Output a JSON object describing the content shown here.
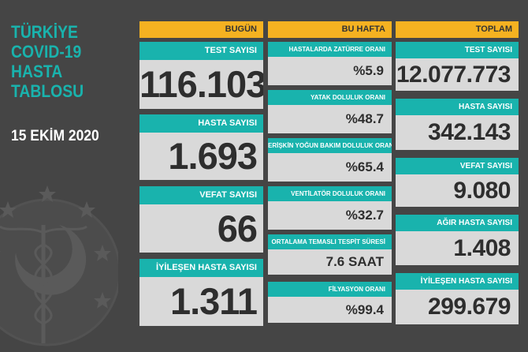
{
  "title_lines": [
    "TÜRKİYE",
    "COVID-19",
    "HASTA",
    "TABLOSU"
  ],
  "date": "15 EKİM 2020",
  "colors": {
    "background": "#454545",
    "teal": "#19b3ad",
    "yellow": "#f5b221",
    "panel": "#d9d9d9"
  },
  "emblem_icon": "ministry-of-health-emblem-icon",
  "today": {
    "header": "BUGÜN",
    "items": [
      {
        "label": "TEST SAYISI",
        "value": "116.103"
      },
      {
        "label": "HASTA SAYISI",
        "value": "1.693"
      },
      {
        "label": "VEFAT SAYISI",
        "value": "66"
      },
      {
        "label": "İYİLEŞEN HASTA SAYISI",
        "value": "1.311"
      }
    ]
  },
  "this_week": {
    "header": "BU HAFTA",
    "items": [
      {
        "label": "HASTALARDA ZATÜRRE ORANI",
        "value": "%5.9"
      },
      {
        "label": "YATAK DOLULUK ORANI",
        "value": "%48.7"
      },
      {
        "label": "ERİŞKİN YOĞUN BAKIM DOLULUK ORANI",
        "value": "%65.4"
      },
      {
        "label": "VENTİLATÖR DOLULUK ORANI",
        "value": "%32.7"
      },
      {
        "label": "ORTALAMA TEMASLI TESPİT SÜRESİ",
        "value": "7.6 SAAT"
      },
      {
        "label": "FİLYASYON ORANI",
        "value": "%99.4"
      }
    ]
  },
  "total": {
    "header": "TOPLAM",
    "items": [
      {
        "label": "TEST SAYISI",
        "value": "12.077.773"
      },
      {
        "label": "HASTA SAYISI",
        "value": "342.143"
      },
      {
        "label": "VEFAT SAYISI",
        "value": "9.080"
      },
      {
        "label": "AĞIR HASTA SAYISI",
        "value": "1.408"
      },
      {
        "label": "İYİLEŞEN HASTA SAYISI",
        "value": "299.679"
      }
    ]
  }
}
